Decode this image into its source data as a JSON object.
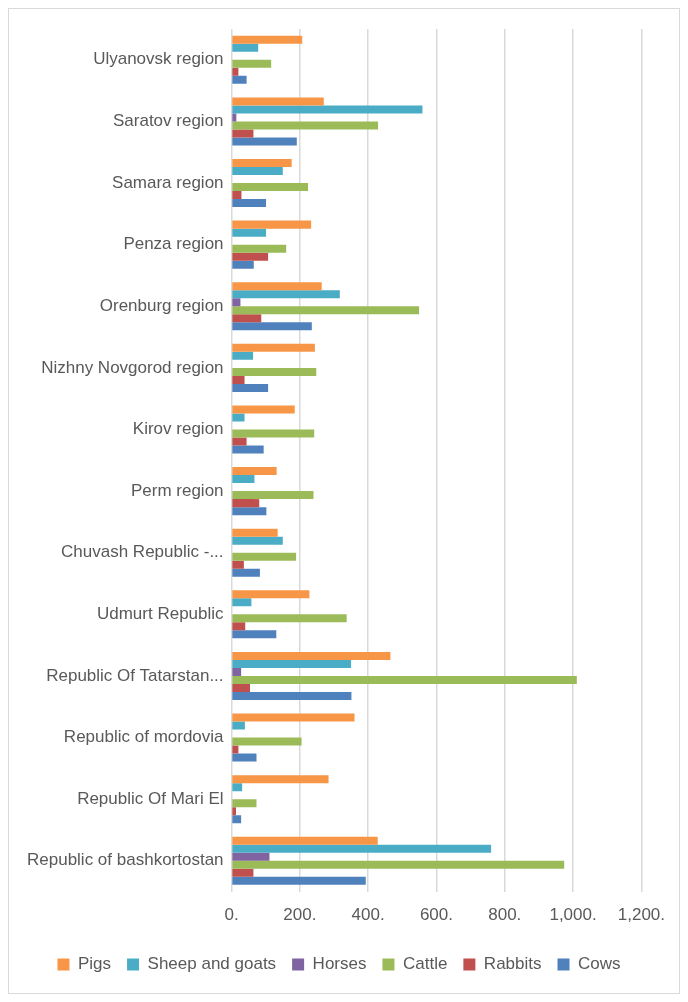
{
  "chart_data": {
    "type": "bar",
    "orientation": "horizontal",
    "categories": [
      "Ulyanovsk region",
      "Saratov region",
      "Samara region",
      "Penza region",
      "Orenburg region",
      "Nizhny Novgorod region",
      "Kirov region",
      "Perm region",
      "Chuvash Republic -...",
      "Udmurt Republic",
      "Republic Of Tatarstan...",
      "Republic of mordovia",
      "Republic Of Mari El",
      "Republic of bashkortostan"
    ],
    "series": [
      {
        "name": "Pigs",
        "color": "#f79646",
        "values": [
          207,
          270,
          176,
          233,
          264,
          244,
          185,
          132,
          135,
          228,
          465,
          360,
          284,
          428
        ]
      },
      {
        "name": "Sheep and goats",
        "color": "#4bacc6",
        "values": [
          78,
          559,
          150,
          101,
          317,
          63,
          38,
          67,
          150,
          58,
          350,
          39,
          31,
          760
        ]
      },
      {
        "name": "Horses",
        "color": "#8064a2",
        "values": [
          null,
          14,
          null,
          null,
          26,
          null,
          null,
          null,
          null,
          null,
          28,
          null,
          null,
          111
        ]
      },
      {
        "name": "Cattle",
        "color": "#9bbb59",
        "values": [
          116,
          429,
          224,
          160,
          549,
          248,
          242,
          240,
          189,
          337,
          1011,
          205,
          73,
          974
        ]
      },
      {
        "name": "Rabbits",
        "color": "#c0504d",
        "values": [
          20,
          64,
          29,
          107,
          87,
          38,
          44,
          81,
          36,
          40,
          54,
          20,
          13,
          64
        ]
      },
      {
        "name": "Cows",
        "color": "#4f81bd",
        "values": [
          44,
          191,
          101,
          65,
          235,
          107,
          94,
          102,
          83,
          131,
          351,
          73,
          28,
          393
        ]
      }
    ],
    "xlim": [
      0,
      1200
    ],
    "xticks": [
      {
        "value": 0,
        "label": "0."
      },
      {
        "value": 200,
        "label": "200."
      },
      {
        "value": 400,
        "label": "400."
      },
      {
        "value": 600,
        "label": "600."
      },
      {
        "value": 800,
        "label": "800."
      },
      {
        "value": 1000,
        "label": "1,000."
      },
      {
        "value": 1200,
        "label": "1,200."
      }
    ],
    "grid": "x",
    "legend": "bottom"
  }
}
